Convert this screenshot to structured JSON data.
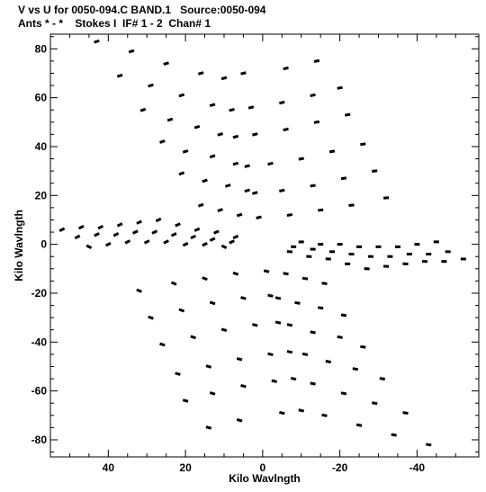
{
  "header": {
    "title_line1": "V vs U for 0050-094.C BAND.1   Source:0050-094",
    "title_line2": "Ants * - *    Stokes I  IF# 1 - 2  Chan# 1"
  },
  "chart_data": {
    "type": "scatter",
    "title": "V vs U for 0050-094.C BAND.1   Source:0050-094",
    "subtitle": "Ants * - *    Stokes I  IF# 1 - 2  Chan# 1",
    "xlabel": "Kilo Wavlngth",
    "ylabel": "Kilo Wavlngth",
    "xlim": [
      55,
      -56
    ],
    "ylim": [
      -87,
      86
    ],
    "x_direction": "reversed",
    "xticks": [
      40,
      20,
      0,
      -20,
      -40
    ],
    "yticks": [
      80,
      60,
      40,
      20,
      0,
      -20,
      -40,
      -60,
      -80
    ],
    "grid": false,
    "marker_color": "#000000",
    "series": [
      {
        "values": [
          [
            43,
            83
          ],
          [
            34,
            79
          ],
          [
            25,
            74
          ],
          [
            16,
            70
          ],
          [
            10,
            68
          ],
          [
            5,
            70
          ],
          [
            -6,
            72
          ],
          [
            -14,
            75
          ],
          [
            37,
            69
          ],
          [
            29,
            65
          ],
          [
            21,
            61
          ],
          [
            13,
            57
          ],
          [
            8,
            55
          ],
          [
            3,
            56
          ],
          [
            -5,
            58
          ],
          [
            -13,
            61
          ],
          [
            -20,
            64
          ],
          [
            31,
            55
          ],
          [
            24,
            51
          ],
          [
            17,
            48
          ],
          [
            11,
            45
          ],
          [
            7,
            44
          ],
          [
            2,
            45
          ],
          [
            -6,
            47
          ],
          [
            -14,
            50
          ],
          [
            -22,
            53
          ],
          [
            26,
            42
          ],
          [
            20,
            38
          ],
          [
            13,
            36
          ],
          [
            7,
            33
          ],
          [
            4,
            32
          ],
          [
            -2,
            33
          ],
          [
            -10,
            35
          ],
          [
            -18,
            38
          ],
          [
            -26,
            41
          ],
          [
            21,
            29
          ],
          [
            15,
            26
          ],
          [
            9,
            24
          ],
          [
            4,
            22
          ],
          [
            2,
            21
          ],
          [
            -5,
            22
          ],
          [
            -13,
            24
          ],
          [
            -21,
            27
          ],
          [
            -29,
            30
          ],
          [
            16,
            16
          ],
          [
            11,
            14
          ],
          [
            6,
            12
          ],
          [
            1,
            11
          ],
          [
            -7,
            12
          ],
          [
            -15,
            14
          ],
          [
            -23,
            16
          ],
          [
            -32,
            19
          ],
          [
            -43,
            -82
          ],
          [
            -34,
            -78
          ],
          [
            -25,
            -74
          ],
          [
            -16,
            -70
          ],
          [
            -10,
            -68
          ],
          [
            -5,
            -69
          ],
          [
            6,
            -72
          ],
          [
            14,
            -75
          ],
          [
            -37,
            -69
          ],
          [
            -29,
            -65
          ],
          [
            -21,
            -61
          ],
          [
            -13,
            -57
          ],
          [
            -8,
            -55
          ],
          [
            -3,
            -56
          ],
          [
            5,
            -58
          ],
          [
            13,
            -61
          ],
          [
            20,
            -64
          ],
          [
            -31,
            -55
          ],
          [
            -24,
            -51
          ],
          [
            -17,
            -48
          ],
          [
            -11,
            -45
          ],
          [
            -7,
            -44
          ],
          [
            -2,
            -45
          ],
          [
            6,
            -47
          ],
          [
            14,
            -50
          ],
          [
            22,
            -53
          ],
          [
            -26,
            -42
          ],
          [
            -20,
            -38
          ],
          [
            -13,
            -36
          ],
          [
            -7,
            -33
          ],
          [
            -4,
            -32
          ],
          [
            2,
            -33
          ],
          [
            10,
            -35
          ],
          [
            18,
            -38
          ],
          [
            26,
            -41
          ],
          [
            -21,
            -29
          ],
          [
            -15,
            -26
          ],
          [
            -9,
            -24
          ],
          [
            -4,
            -22
          ],
          [
            -2,
            -21
          ],
          [
            5,
            -22
          ],
          [
            13,
            -24
          ],
          [
            21,
            -27
          ],
          [
            29,
            -30
          ],
          [
            -16,
            -16
          ],
          [
            -11,
            -14
          ],
          [
            -6,
            -12
          ],
          [
            -1,
            -11
          ],
          [
            7,
            -12
          ],
          [
            15,
            -14
          ],
          [
            23,
            -16
          ],
          [
            32,
            -19
          ],
          [
            52,
            6
          ],
          [
            47,
            7
          ],
          [
            42,
            7
          ],
          [
            37,
            8
          ],
          [
            32,
            9
          ],
          [
            27,
            10
          ],
          [
            22,
            8
          ],
          [
            17,
            6
          ],
          [
            12,
            5
          ],
          [
            7,
            3
          ],
          [
            48,
            3
          ],
          [
            43,
            4
          ],
          [
            38,
            4
          ],
          [
            33,
            5
          ],
          [
            28,
            5
          ],
          [
            23,
            4
          ],
          [
            18,
            3
          ],
          [
            13,
            2
          ],
          [
            8,
            1
          ],
          [
            45,
            -1
          ],
          [
            40,
            0
          ],
          [
            35,
            1
          ],
          [
            30,
            1
          ],
          [
            25,
            1
          ],
          [
            20,
            0
          ],
          [
            15,
            0
          ],
          [
            10,
            -1
          ],
          [
            -52,
            -6
          ],
          [
            -47,
            -7
          ],
          [
            -42,
            -7
          ],
          [
            -37,
            -8
          ],
          [
            -32,
            -9
          ],
          [
            -27,
            -10
          ],
          [
            -22,
            -8
          ],
          [
            -17,
            -6
          ],
          [
            -12,
            -5
          ],
          [
            -7,
            -3
          ],
          [
            -48,
            -3
          ],
          [
            -43,
            -4
          ],
          [
            -38,
            -4
          ],
          [
            -33,
            -5
          ],
          [
            -28,
            -5
          ],
          [
            -23,
            -4
          ],
          [
            -18,
            -3
          ],
          [
            -13,
            -2
          ],
          [
            -8,
            -1
          ],
          [
            -45,
            1
          ],
          [
            -40,
            0
          ],
          [
            -35,
            -1
          ],
          [
            -30,
            -1
          ],
          [
            -25,
            -1
          ],
          [
            -20,
            0
          ],
          [
            -15,
            0
          ],
          [
            -10,
            1
          ]
        ]
      }
    ]
  }
}
